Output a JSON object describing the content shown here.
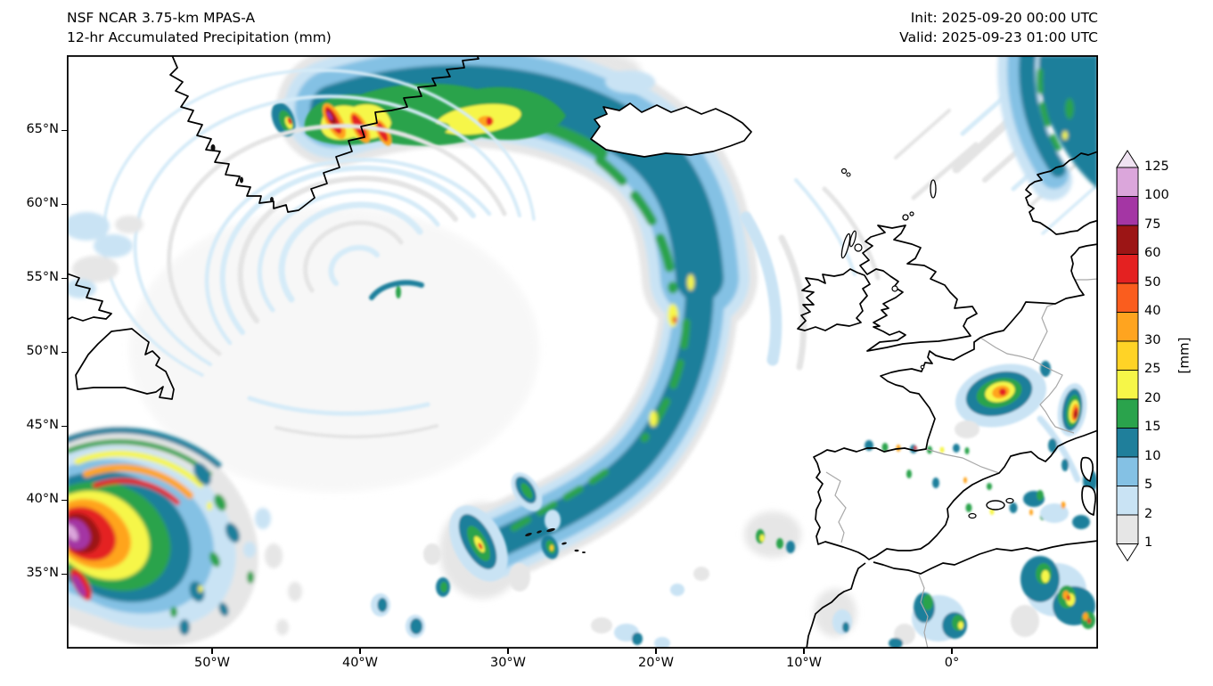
{
  "header": {
    "model": "NSF NCAR 3.75-km MPAS-A",
    "product": "12-hr Accumulated Precipitation (mm)",
    "init": "Init: 2025-09-20 00:00 UTC",
    "valid": "Valid: 2025-09-23 01:00 UTC"
  },
  "axes": {
    "x_labels": [
      "50°W",
      "40°W",
      "30°W",
      "20°W",
      "10°W",
      "0°"
    ],
    "y_labels": [
      "65°N",
      "60°N",
      "55°N",
      "50°N",
      "45°N",
      "40°N",
      "35°N"
    ]
  },
  "colorbar": {
    "unit": "[mm]",
    "ticks": [
      "1",
      "2",
      "5",
      "10",
      "15",
      "20",
      "25",
      "30",
      "40",
      "50",
      "60",
      "75",
      "100",
      "125"
    ],
    "colors": [
      "#ffffff",
      "#e6e6e6",
      "#c9e3f4",
      "#84c1e4",
      "#1f7f9b",
      "#2aa34c",
      "#f6f648",
      "#ffd326",
      "#ffa41f",
      "#fa5d1e",
      "#e42121",
      "#9c1515",
      "#a436a4",
      "#dba6db",
      "#f0e3f2"
    ]
  },
  "chart_data": {
    "type": "heatmap",
    "title": "NSF NCAR 3.75-km MPAS-A",
    "subtitle": "12-hr Accumulated Precipitation (mm)",
    "init_time": "2025-09-20 00:00 UTC",
    "valid_time": "2025-09-23 01:00 UTC",
    "unit": "mm",
    "projection": "lat-lon map, North Atlantic / western Europe",
    "extent": {
      "lon": [
        -59.8,
        9.9
      ],
      "lat": [
        30.0,
        70.1
      ]
    },
    "x_ticks": [
      "50°W",
      "40°W",
      "30°W",
      "20°W",
      "10°W",
      "0°"
    ],
    "y_ticks": [
      "65°N",
      "60°N",
      "55°N",
      "50°N",
      "45°N",
      "40°N",
      "35°N"
    ],
    "levels_mm": [
      1,
      2,
      5,
      10,
      15,
      20,
      25,
      30,
      40,
      50,
      60,
      75,
      100,
      125
    ],
    "legend_position": "right",
    "features": [
      {
        "name": "greenland-coastal-cells",
        "location": "SE Greenland coast, 43-32W / 64-67N",
        "intensity_mm": "25-100+, banded orographic cells (yellow/orange/red/magenta cores)"
      },
      {
        "name": "main-frontal-band",
        "location": "arc from SE Greenland east past Iceland then curving south along 25-22W to ~45N",
        "intensity_mm": "5-20 with embedded 15-30 streaks"
      },
      {
        "name": "occluded-cyclone-spiral",
        "location": "centered near 47W, 56N",
        "intensity_mm": "1-5, thin spiral bands"
      },
      {
        "name": "newfoundland-offshore-system",
        "location": "SW corner, 60-48W / 33-42N",
        "intensity_mm": "cores 75-125+ (magenta/plum), broad 10-50 shield"
      },
      {
        "name": "norway-coastal-band",
        "location": "top-right corner along Norwegian coast",
        "intensity_mm": "5-20"
      },
      {
        "name": "france-alps-cells",
        "location": "central France ~0E/47N and Alps near 8E/45N",
        "intensity_mm": "25-60"
      },
      {
        "name": "iberia-nw-africa-convection",
        "location": "scattered over Spain, Balearics, Morocco/Algeria",
        "intensity_mm": "5-50 speckled cells"
      },
      {
        "name": "mid-atlantic-scattered-cells",
        "location": "trail from band tail toward Azores",
        "intensity_mm": "5-30"
      }
    ]
  }
}
